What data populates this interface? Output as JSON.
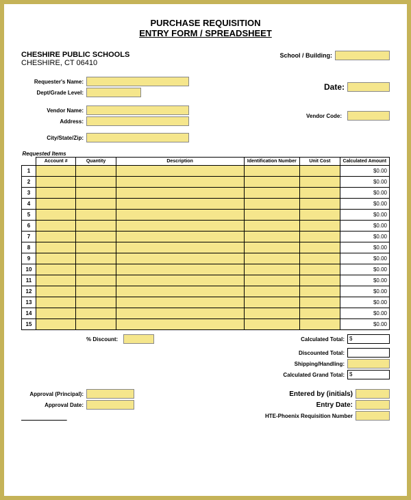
{
  "title_line1": "PURCHASE REQUISITION",
  "title_line2": "ENTRY FORM / SPREADSHEET",
  "org_name": "CHESHIRE PUBLIC SCHOOLS",
  "org_location": "CHESHIRE, CT 06410",
  "school_building_label": "School / Building:",
  "requester_label": "Requester's Name:",
  "dept_label": "Dept/Grade Level:",
  "date_label": "Date:",
  "vendor_name_label": "Vendor Name:",
  "vendor_code_label": "Vendor Code:",
  "address_label": "Address:",
  "city_label": "City/State/Zip:",
  "requested_items_label": "Requested Items",
  "columns": {
    "account": "Account #",
    "quantity": "Quantity",
    "description": "Description",
    "identification": "Identification Number",
    "unit_cost": "Unit Cost",
    "calculated": "Calculated Amount"
  },
  "rows": [
    {
      "n": "1",
      "calc": "$0.00"
    },
    {
      "n": "2",
      "calc": "$0.00"
    },
    {
      "n": "3",
      "calc": "$0.00"
    },
    {
      "n": "4",
      "calc": "$0.00"
    },
    {
      "n": "5",
      "calc": "$0.00"
    },
    {
      "n": "6",
      "calc": "$0.00"
    },
    {
      "n": "7",
      "calc": "$0.00"
    },
    {
      "n": "8",
      "calc": "$0.00"
    },
    {
      "n": "9",
      "calc": "$0.00"
    },
    {
      "n": "10",
      "calc": "$0.00"
    },
    {
      "n": "11",
      "calc": "$0.00"
    },
    {
      "n": "12",
      "calc": "$0.00"
    },
    {
      "n": "13",
      "calc": "$0.00"
    },
    {
      "n": "14",
      "calc": "$0.00"
    },
    {
      "n": "15",
      "calc": "$0.00"
    }
  ],
  "discount_label": "% Discount:",
  "calc_total_label": "Calculated Total:",
  "calc_total_val": "$",
  "disc_total_label": "Discounted Total:",
  "ship_label": "Shipping/Handling:",
  "grand_total_label": "Calculated Grand Total:",
  "grand_total_val": "$",
  "approval_principal_label": "Approval (Principal):",
  "approval_date_label": "Approval Date:",
  "entered_by_label": "Entered by (initials)",
  "entry_date_label": "Entry Date:",
  "hte_label": "HTE-Phoenix Requisition Number",
  "colors": {
    "border": "#c5b358",
    "field_bg": "#f5e68c",
    "line": "#000000"
  }
}
